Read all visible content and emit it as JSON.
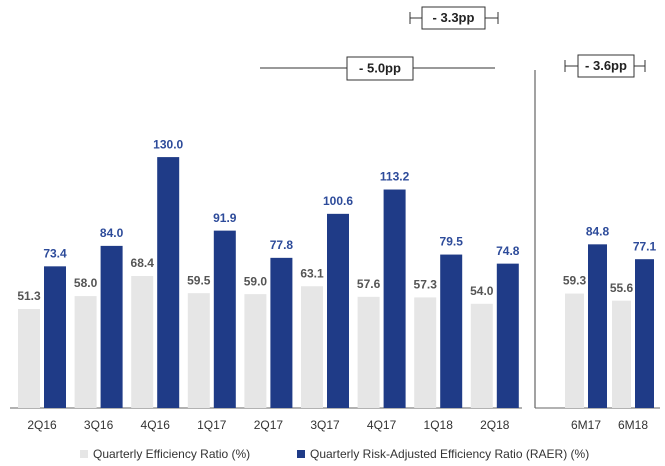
{
  "chart_data": [
    {
      "type": "bar",
      "categories": [
        "2Q16",
        "3Q16",
        "4Q16",
        "1Q17",
        "2Q17",
        "3Q17",
        "4Q17",
        "1Q18",
        "2Q18"
      ],
      "series": [
        {
          "name": "Quarterly Efficiency Ratio (%)",
          "color": "#e6e6e6",
          "values": [
            51.3,
            58.0,
            68.4,
            59.5,
            59.0,
            63.1,
            57.6,
            57.3,
            54.0
          ],
          "value_labels": [
            "51.3",
            "58.0",
            "68.4",
            "59.5",
            "59.0",
            "63.1",
            "57.6",
            "57.3",
            "54.0"
          ]
        },
        {
          "name": "Quarterly Risk-Adjusted Efficiency Ratio (RAER) (%)",
          "color": "#1f3b87",
          "values": [
            73.4,
            84.0,
            130.0,
            91.9,
            77.8,
            100.6,
            113.2,
            79.5,
            74.8
          ],
          "value_labels": [
            "73.4",
            "84.0",
            "130.0",
            "91.9",
            "77.8",
            "100.6",
            "113.2",
            "79.5",
            "74.8"
          ]
        }
      ],
      "annotations": [
        "- 3.3pp",
        "- 5.0pp"
      ]
    },
    {
      "type": "bar",
      "categories": [
        "6M17",
        "6M18"
      ],
      "series": [
        {
          "color": "#e6e6e6",
          "values": [
            59.3,
            55.6
          ],
          "value_labels": [
            "59.3",
            "55.6"
          ]
        },
        {
          "color": "#1f3b87",
          "values": [
            84.8,
            77.1
          ],
          "value_labels": [
            "84.8",
            "77.1"
          ]
        }
      ],
      "annotations": [
        "- 3.6pp"
      ]
    }
  ]
}
